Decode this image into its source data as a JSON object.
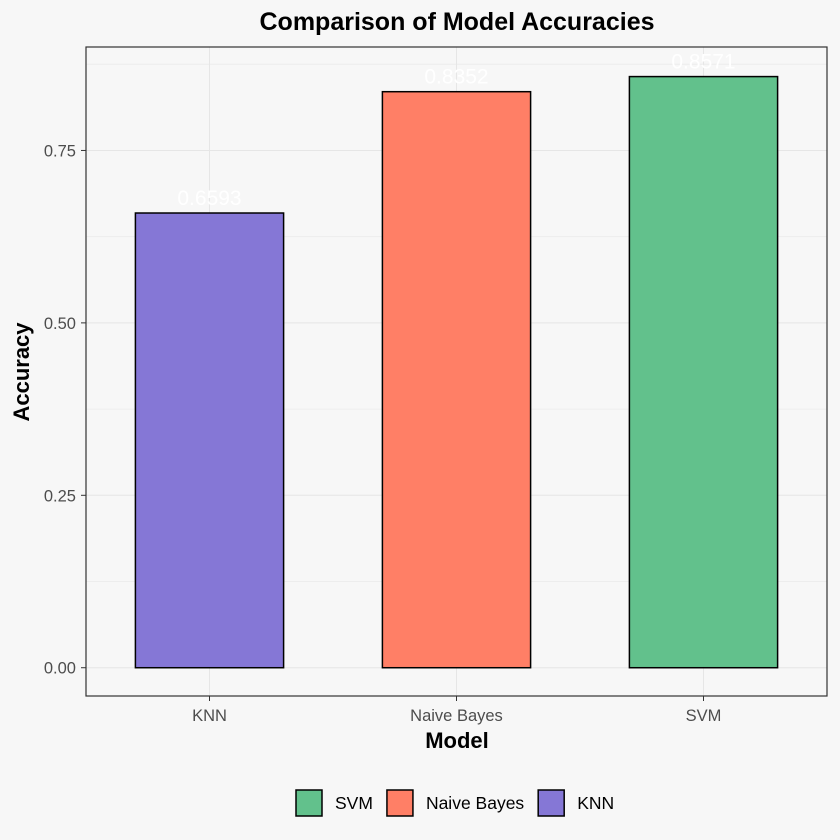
{
  "chart_data": {
    "type": "bar",
    "title": "Comparison of Model Accuracies",
    "xlabel": "Model",
    "ylabel": "Accuracy",
    "categories": [
      "KNN",
      "Naive Bayes",
      "SVM"
    ],
    "values": [
      0.6593,
      0.8352,
      0.8571
    ],
    "data_labels": [
      "0.6593",
      "0.8352",
      "0.8571"
    ],
    "colors": [
      "#8577d6",
      "#ff7f66",
      "#62c18c"
    ],
    "ylim": [
      -0.041,
      0.9
    ],
    "yticks": [
      0,
      0.25,
      0.5,
      0.75
    ],
    "ytick_labels": [
      "0.00",
      "0.25",
      "0.50",
      "0.75"
    ],
    "grid": true,
    "legend": {
      "position": "bottom",
      "entries": [
        {
          "label": "SVM",
          "color": "#62c18c"
        },
        {
          "label": "Naive Bayes",
          "color": "#ff7f66"
        },
        {
          "label": "KNN",
          "color": "#8577d6"
        }
      ]
    }
  }
}
